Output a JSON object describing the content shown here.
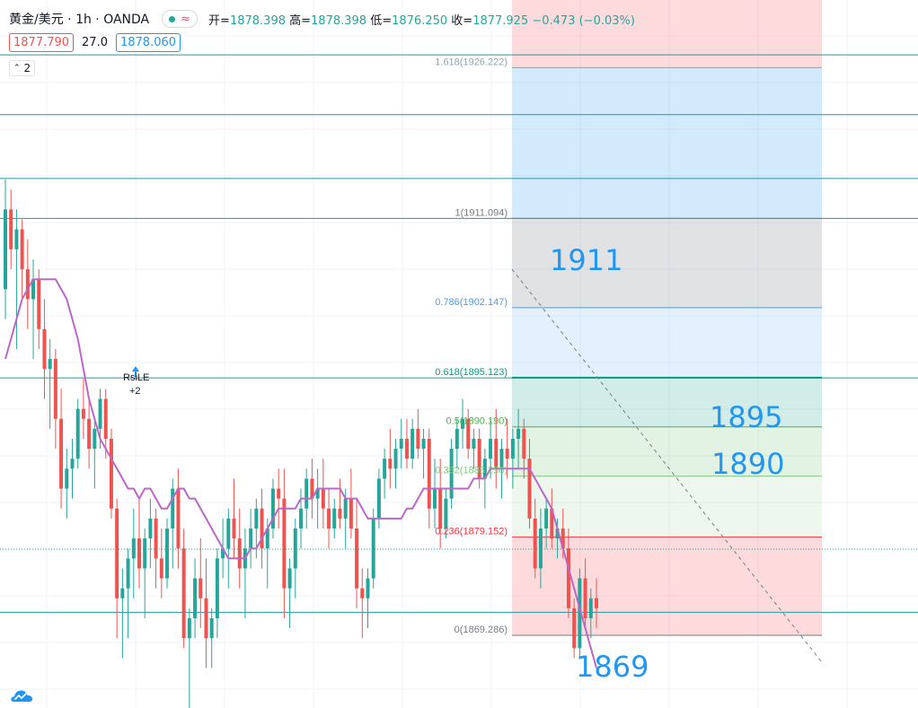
{
  "header": {
    "symbol": "黄金/美元 · 1h · OANDA",
    "ohlc_open_label": "开=",
    "ohlc_open": "1878.398",
    "ohlc_high_label": "高=",
    "ohlc_high": "1878.398",
    "ohlc_low_label": "低=",
    "ohlc_low": "1876.250",
    "ohlc_close_label": "收=",
    "ohlc_close": "1877.925",
    "ohlc_change": "−0.473 (−0.03%)",
    "sell_price": "1877.790",
    "spread": "27.0",
    "buy_price": "1878.060",
    "indicator_count": "2"
  },
  "fib": {
    "levels": [
      {
        "label": "1.618(1926.222)",
        "color": "#90a4ae"
      },
      {
        "label": "1(1911.094)",
        "color": "#787b86"
      },
      {
        "label": "0.786(1902.147)",
        "color": "#5b9bd5"
      },
      {
        "label": "0.618(1895.123)",
        "color": "#089981"
      },
      {
        "label": "0.5(1890.190)",
        "color": "#4caf50"
      },
      {
        "label": "0.382(1885.256)",
        "color": "#81c784"
      },
      {
        "label": "0.236(1879.152)",
        "color": "#f23645"
      },
      {
        "label": "0(1869.286)",
        "color": "#787b86"
      }
    ]
  },
  "annotations": [
    {
      "text": "1911"
    },
    {
      "text": "1895"
    },
    {
      "text": "1890"
    },
    {
      "text": "1869"
    }
  ],
  "signal": {
    "label": "RsiLE",
    "sub": "+2"
  },
  "colors": {
    "up": "#26a69a",
    "down": "#ef5350",
    "ma": "#ba68c8",
    "hline": "#2196a6",
    "annotation": "#2196f3"
  },
  "chart_data": {
    "type": "candlestick",
    "y_unit": "price (USD)",
    "price_at_top_of_plot": 1933,
    "price_at_bottom_of_plot": 1862,
    "candles": [
      [
        1904,
        1915,
        1901,
        1912
      ],
      [
        1912,
        1914,
        1906,
        1908
      ],
      [
        1908,
        1912,
        1898,
        1910
      ],
      [
        1910,
        1911,
        1903,
        1906
      ],
      [
        1906,
        1909,
        1900,
        1903
      ],
      [
        1903,
        1907,
        1897,
        1905
      ],
      [
        1905,
        1906,
        1898,
        1900
      ],
      [
        1900,
        1903,
        1893,
        1896
      ],
      [
        1896,
        1899,
        1890,
        1897
      ],
      [
        1897,
        1898,
        1888,
        1891
      ],
      [
        1891,
        1894,
        1882,
        1884
      ],
      [
        1884,
        1888,
        1881,
        1886
      ],
      [
        1886,
        1889,
        1883,
        1887
      ],
      [
        1887,
        1893,
        1886,
        1892
      ],
      [
        1892,
        1895,
        1889,
        1891
      ],
      [
        1891,
        1893,
        1886,
        1888
      ],
      [
        1888,
        1891,
        1884,
        1890
      ],
      [
        1890,
        1894,
        1888,
        1893
      ],
      [
        1893,
        1894,
        1887,
        1889
      ],
      [
        1889,
        1890,
        1881,
        1882
      ],
      [
        1882,
        1883,
        1869,
        1873
      ],
      [
        1873,
        1876,
        1867,
        1874
      ],
      [
        1874,
        1878,
        1869,
        1877
      ],
      [
        1877,
        1882,
        1873,
        1879
      ],
      [
        1879,
        1883,
        1874,
        1876
      ],
      [
        1876,
        1880,
        1871,
        1879
      ],
      [
        1879,
        1883,
        1876,
        1881
      ],
      [
        1881,
        1882,
        1874,
        1877
      ],
      [
        1877,
        1880,
        1873,
        1875
      ],
      [
        1875,
        1881,
        1874,
        1880
      ],
      [
        1880,
        1885,
        1876,
        1884
      ],
      [
        1884,
        1886,
        1876,
        1878
      ],
      [
        1878,
        1880,
        1868,
        1869
      ],
      [
        1869,
        1872,
        1862,
        1871
      ],
      [
        1871,
        1877,
        1869,
        1875
      ],
      [
        1875,
        1879,
        1870,
        1873
      ],
      [
        1873,
        1877,
        1866,
        1869
      ],
      [
        1869,
        1872,
        1866,
        1871
      ],
      [
        1871,
        1878,
        1869,
        1877
      ],
      [
        1877,
        1881,
        1875,
        1878
      ],
      [
        1878,
        1882,
        1874,
        1881
      ],
      [
        1881,
        1885,
        1877,
        1879
      ],
      [
        1879,
        1882,
        1874,
        1876
      ],
      [
        1876,
        1880,
        1871,
        1878
      ],
      [
        1878,
        1882,
        1876,
        1880
      ],
      [
        1880,
        1883,
        1877,
        1882
      ],
      [
        1882,
        1884,
        1876,
        1878
      ],
      [
        1878,
        1881,
        1874,
        1880
      ],
      [
        1880,
        1885,
        1879,
        1884
      ],
      [
        1884,
        1886,
        1880,
        1883
      ],
      [
        1883,
        1886,
        1871,
        1874
      ],
      [
        1874,
        1877,
        1870,
        1876
      ],
      [
        1876,
        1881,
        1873,
        1880
      ],
      [
        1880,
        1884,
        1878,
        1882
      ],
      [
        1882,
        1886,
        1880,
        1885
      ],
      [
        1885,
        1887,
        1881,
        1883
      ],
      [
        1883,
        1886,
        1880,
        1884
      ],
      [
        1884,
        1887,
        1880,
        1882
      ],
      [
        1882,
        1884,
        1878,
        1880
      ],
      [
        1880,
        1883,
        1879,
        1882
      ],
      [
        1882,
        1885,
        1880,
        1881
      ],
      [
        1881,
        1884,
        1878,
        1883
      ],
      [
        1883,
        1886,
        1879,
        1880
      ],
      [
        1880,
        1883,
        1872,
        1874
      ],
      [
        1874,
        1876,
        1869,
        1873
      ],
      [
        1873,
        1876,
        1870,
        1875
      ],
      [
        1875,
        1882,
        1874,
        1881
      ],
      [
        1881,
        1886,
        1880,
        1885
      ],
      [
        1885,
        1888,
        1883,
        1887
      ],
      [
        1887,
        1890,
        1884,
        1886
      ],
      [
        1886,
        1889,
        1884,
        1888
      ],
      [
        1888,
        1891,
        1886,
        1889
      ],
      [
        1889,
        1891,
        1886,
        1887
      ],
      [
        1887,
        1891,
        1886,
        1890
      ],
      [
        1890,
        1892,
        1887,
        1888
      ],
      [
        1888,
        1890,
        1885,
        1889
      ],
      [
        1889,
        1890,
        1880,
        1882
      ],
      [
        1882,
        1887,
        1880,
        1884
      ],
      [
        1884,
        1887,
        1878,
        1880
      ],
      [
        1880,
        1884,
        1879,
        1883
      ],
      [
        1883,
        1889,
        1882,
        1888
      ],
      [
        1888,
        1891,
        1886,
        1890
      ],
      [
        1890,
        1893,
        1888,
        1891
      ],
      [
        1891,
        1892,
        1887,
        1888
      ],
      [
        1888,
        1890,
        1886,
        1889
      ],
      [
        1889,
        1890,
        1884,
        1885
      ],
      [
        1885,
        1888,
        1882,
        1887
      ],
      [
        1887,
        1891,
        1885,
        1889
      ],
      [
        1889,
        1892,
        1884,
        1886
      ],
      [
        1886,
        1889,
        1883,
        1888
      ],
      [
        1888,
        1891,
        1885,
        1887
      ],
      [
        1887,
        1890,
        1884,
        1889
      ],
      [
        1889,
        1892,
        1886,
        1890
      ],
      [
        1890,
        1891,
        1885,
        1887
      ],
      [
        1887,
        1889,
        1880,
        1881
      ],
      [
        1881,
        1883,
        1875,
        1876
      ],
      [
        1876,
        1882,
        1874,
        1880
      ],
      [
        1880,
        1883,
        1878,
        1882
      ],
      [
        1882,
        1884,
        1878,
        1879
      ],
      [
        1879,
        1881,
        1877,
        1880
      ],
      [
        1880,
        1882,
        1877,
        1878
      ],
      [
        1878,
        1880,
        1871,
        1872
      ],
      [
        1872,
        1873,
        1867,
        1868
      ],
      [
        1868,
        1876,
        1867,
        1875
      ],
      [
        1875,
        1877,
        1870,
        1871
      ],
      [
        1871,
        1874,
        1869,
        1873
      ],
      [
        1873,
        1875,
        1870,
        1872
      ]
    ],
    "moving_average": [
      1897,
      1899,
      1901,
      1903,
      1904,
      1905,
      1905,
      1905,
      1905,
      1905,
      1904,
      1903,
      1901,
      1899,
      1896,
      1893,
      1891,
      1889,
      1888,
      1887,
      1886,
      1885,
      1884,
      1884,
      1883,
      1884,
      1884,
      1883,
      1882,
      1882,
      1883,
      1884,
      1884,
      1883,
      1883,
      1882,
      1881,
      1880,
      1879,
      1878,
      1877,
      1877,
      1877,
      1877,
      1878,
      1878,
      1879,
      1880,
      1881,
      1882,
      1882,
      1882,
      1882,
      1883,
      1883,
      1883,
      1884,
      1884,
      1884,
      1884,
      1884,
      1883,
      1883,
      1883,
      1882,
      1881,
      1881,
      1881,
      1881,
      1881,
      1881,
      1881,
      1882,
      1882,
      1883,
      1884,
      1884,
      1884,
      1884,
      1884,
      1884,
      1884,
      1884,
      1884,
      1885,
      1885,
      1885,
      1886,
      1886,
      1886,
      1886,
      1886,
      1886,
      1886,
      1886,
      1885,
      1884,
      1883,
      1882,
      1880,
      1878,
      1876,
      1874,
      1872,
      1870,
      1868,
      1866
    ],
    "horizontal_lines": [
      1927.5,
      1921.5,
      1915.1,
      1911.1,
      1895.1,
      1871.6
    ],
    "fib_prices": [
      1926.222,
      1911.094,
      1902.147,
      1895.123,
      1890.19,
      1885.256,
      1879.152,
      1869.286
    ],
    "current_price": 1877.925
  }
}
